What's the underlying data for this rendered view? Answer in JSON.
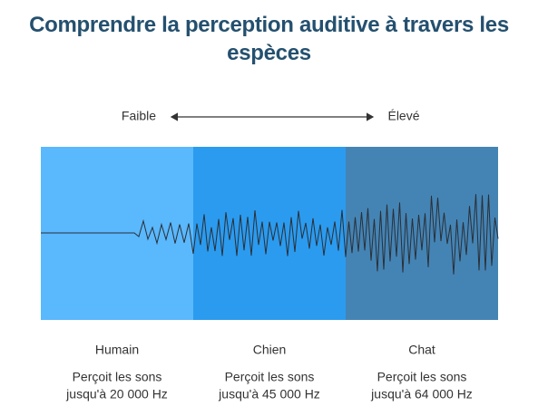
{
  "title": "Comprendre la perception auditive à travers les espèces",
  "scale": {
    "low": "Faible",
    "high": "Élevé"
  },
  "species": [
    {
      "name": "Humain",
      "description": [
        "Perçoit les sons",
        "jusqu'à 20 000 Hz"
      ]
    },
    {
      "name": "Chien",
      "description": [
        "Perçoit les sons",
        "jusqu'à 45 000 Hz"
      ]
    },
    {
      "name": "Chat",
      "description": [
        "Perçoit les sons",
        "jusqu'à 64 000 Hz"
      ]
    }
  ]
}
